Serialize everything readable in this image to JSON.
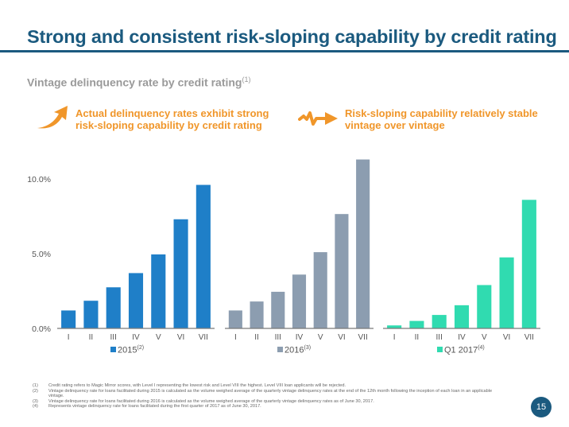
{
  "header": {
    "title": "Strong and consistent risk-sloping capability by credit rating"
  },
  "subtitle": {
    "text": "Vintage delinquency rate by credit rating",
    "footnote_ref": "(1)"
  },
  "callouts": [
    {
      "icon": "upward-curved-arrow-icon",
      "line1": "Actual delinquency rates exhibit strong",
      "line2": "risk-sloping capability by credit rating"
    },
    {
      "icon": "squiggle-arrow-icon",
      "line1": "Risk-sloping capability relatively stable",
      "line2": "vintage over vintage"
    }
  ],
  "colors": {
    "title": "#1b5a7f",
    "accent_orange": "#f0962a",
    "series_2015": "#1f7fc8",
    "series_2016": "#8c9db0",
    "series_q1_2017": "#30dbb0",
    "page_badge": "#1b5a7f"
  },
  "chart_data": [
    {
      "type": "bar",
      "title": "2015",
      "legend": {
        "label": "2015",
        "footnote_ref": "(2)",
        "placement": "bottom"
      },
      "categories": [
        "I",
        "II",
        "III",
        "IV",
        "V",
        "VI",
        "VII"
      ],
      "values": [
        1.2,
        1.85,
        2.75,
        3.7,
        4.95,
        7.3,
        9.6
      ],
      "unit": "%",
      "ylim": [
        0,
        11.5
      ],
      "yticks": [
        "0.0%",
        "5.0%",
        "10.0%"
      ],
      "ytick_values": [
        0,
        5,
        10
      ],
      "xlabel": "",
      "ylabel": "",
      "grid": false
    },
    {
      "type": "bar",
      "title": "2016",
      "legend": {
        "label": "2016",
        "footnote_ref": "(3)",
        "placement": "bottom"
      },
      "categories": [
        "I",
        "II",
        "III",
        "IV",
        "V",
        "VI",
        "VII"
      ],
      "values": [
        1.2,
        1.8,
        2.45,
        3.6,
        5.1,
        7.65,
        11.3
      ],
      "unit": "%",
      "ylim": [
        0,
        11.5
      ],
      "xlabel": "",
      "ylabel": "",
      "grid": false
    },
    {
      "type": "bar",
      "title": "Q1 2017",
      "legend": {
        "label": "Q1 2017",
        "footnote_ref": "(4)",
        "placement": "bottom"
      },
      "categories": [
        "I",
        "II",
        "III",
        "IV",
        "V",
        "VI",
        "VII"
      ],
      "values": [
        0.2,
        0.5,
        0.9,
        1.55,
        2.9,
        4.75,
        8.6
      ],
      "unit": "%",
      "ylim": [
        0,
        11.5
      ],
      "xlabel": "",
      "ylabel": "",
      "grid": false
    }
  ],
  "footnotes": [
    {
      "num": "(1)",
      "text": "Credit rating refers to Magic Mirror scores, with Level I representing the lowest risk and Level VIII the highest. Level VIII loan applicants will be rejected."
    },
    {
      "num": "(2)",
      "text": "Vintage delinquency rate for loans facilitated during 2015 is calculated as the volume weighed average of the quarterly vintage delinquency rates at the end of the 12th month following the inception of each loan in an applicable vintage."
    },
    {
      "num": "(3)",
      "text": "Vintage delinquency rate for loans facilitated during 2016 is calculated as the volume weighed average of the quarterly vintage delinquency rates as of June 30, 2017."
    },
    {
      "num": "(4)",
      "text": "Represents vintage delinquency rate for loans facilitated during the first quarter of 2017 as of June 30, 2017."
    }
  ],
  "page_number": "15"
}
